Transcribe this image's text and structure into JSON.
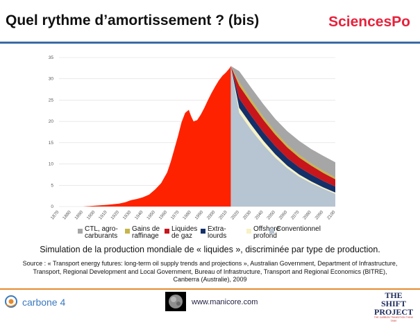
{
  "header": {
    "title": "Quel rythme d’amortissement ? (bis)",
    "brand": "SciencesPo"
  },
  "chart_data": {
    "type": "area",
    "stacked": true,
    "ylim": [
      0,
      35
    ],
    "yticks": [
      0,
      5,
      10,
      15,
      20,
      25,
      30,
      35
    ],
    "xticks": [
      1870,
      1880,
      1890,
      1900,
      1910,
      1920,
      1930,
      1940,
      1950,
      1960,
      1970,
      1980,
      1990,
      2000,
      2010,
      2020,
      2030,
      2040,
      2050,
      2060,
      2070,
      2080,
      2090,
      2100
    ],
    "grid": true,
    "historical": {
      "name": "",
      "color": "#ff2200",
      "x": [
        1870,
        1890,
        1900,
        1905,
        1910,
        1920,
        1925,
        1930,
        1935,
        1940,
        1945,
        1950,
        1955,
        1960,
        1963,
        1966,
        1969,
        1972,
        1975,
        1978,
        1980,
        1982,
        1985,
        1988,
        1991,
        1994,
        1997,
        2000,
        2003,
        2006,
        2009,
        2012,
        2013
      ],
      "values": [
        0,
        0,
        0.2,
        0.3,
        0.4,
        0.7,
        1.0,
        1.5,
        1.8,
        2.2,
        2.8,
        4.0,
        5.5,
        8.0,
        10.5,
        13.5,
        16.5,
        19.8,
        22.0,
        22.7,
        21.2,
        20.0,
        20.3,
        21.6,
        23.2,
        25.0,
        26.7,
        28.2,
        29.6,
        30.7,
        31.5,
        32.5,
        33.0
      ]
    },
    "x": [
      2013,
      2020,
      2030,
      2040,
      2050,
      2060,
      2070,
      2080,
      2090,
      2100
    ],
    "series": [
      {
        "name": "Conventionnel",
        "color": "#b7c4d2",
        "values": [
          33.0,
          22.0,
          18.0,
          14.5,
          11.5,
          9.0,
          7.0,
          5.5,
          4.2,
          3.0
        ]
      },
      {
        "name": "Offshore profond",
        "color": "#f6f2c4",
        "values": [
          0,
          1.2,
          1.2,
          1.0,
          0.8,
          0.6,
          0.5,
          0.4,
          0.3,
          0.3
        ]
      },
      {
        "name": "Extra-lourds",
        "color": "#13306a",
        "values": [
          0,
          2.2,
          2.1,
          2.0,
          1.9,
          1.8,
          1.7,
          1.6,
          1.5,
          1.4
        ]
      },
      {
        "name": "Liquides de gaz",
        "color": "#c8161c",
        "values": [
          0,
          3.0,
          3.0,
          2.9,
          2.7,
          2.5,
          2.3,
          2.1,
          1.9,
          1.7
        ]
      },
      {
        "name": "Gains de raffinage",
        "color": "#c6b64a",
        "values": [
          0,
          0.8,
          0.8,
          0.7,
          0.7,
          0.6,
          0.6,
          0.5,
          0.5,
          0.4
        ]
      },
      {
        "name": "CTL, agro-carburants",
        "color": "#a6a6a6",
        "values": [
          0,
          2.6,
          2.8,
          3.0,
          3.0,
          3.2,
          3.3,
          3.4,
          3.5,
          3.6
        ]
      }
    ],
    "legend_labels": [
      {
        "text": "CTL, agro-\ncarburants",
        "color": "#a6a6a6"
      },
      {
        "text": "Gains de\nraffinage",
        "color": "#c6b64a"
      },
      {
        "text": "Liquides\nde gaz",
        "color": "#c8161c"
      },
      {
        "text": "Extra-\nlourds",
        "color": "#13306a"
      },
      {
        "text": "Offshore\nprofond",
        "color": "#f6f2c4"
      },
      {
        "text": "Conventionnel",
        "color": "#b7c4d2"
      }
    ]
  },
  "caption": "Simulation de la production mondiale de « liquides », discriminée par type de production.",
  "source": "Source : « Transport energy futures: long-term oil supply trends and projections », Australian Government, Department of Infrastructure, Transport, Regional Development and Local Government, Bureau of Infrastructure, Transport and Regional Economics (BITRE), Canberra (Australie), 2009",
  "footer": {
    "left_logo": "carbone 4",
    "url": "www.manicore.com",
    "right_logo_line1": "THE SHIFT",
    "right_logo_line2": "PROJECT",
    "right_logo_tagline": "THE CARBON TRANSITION THINK TANK"
  }
}
